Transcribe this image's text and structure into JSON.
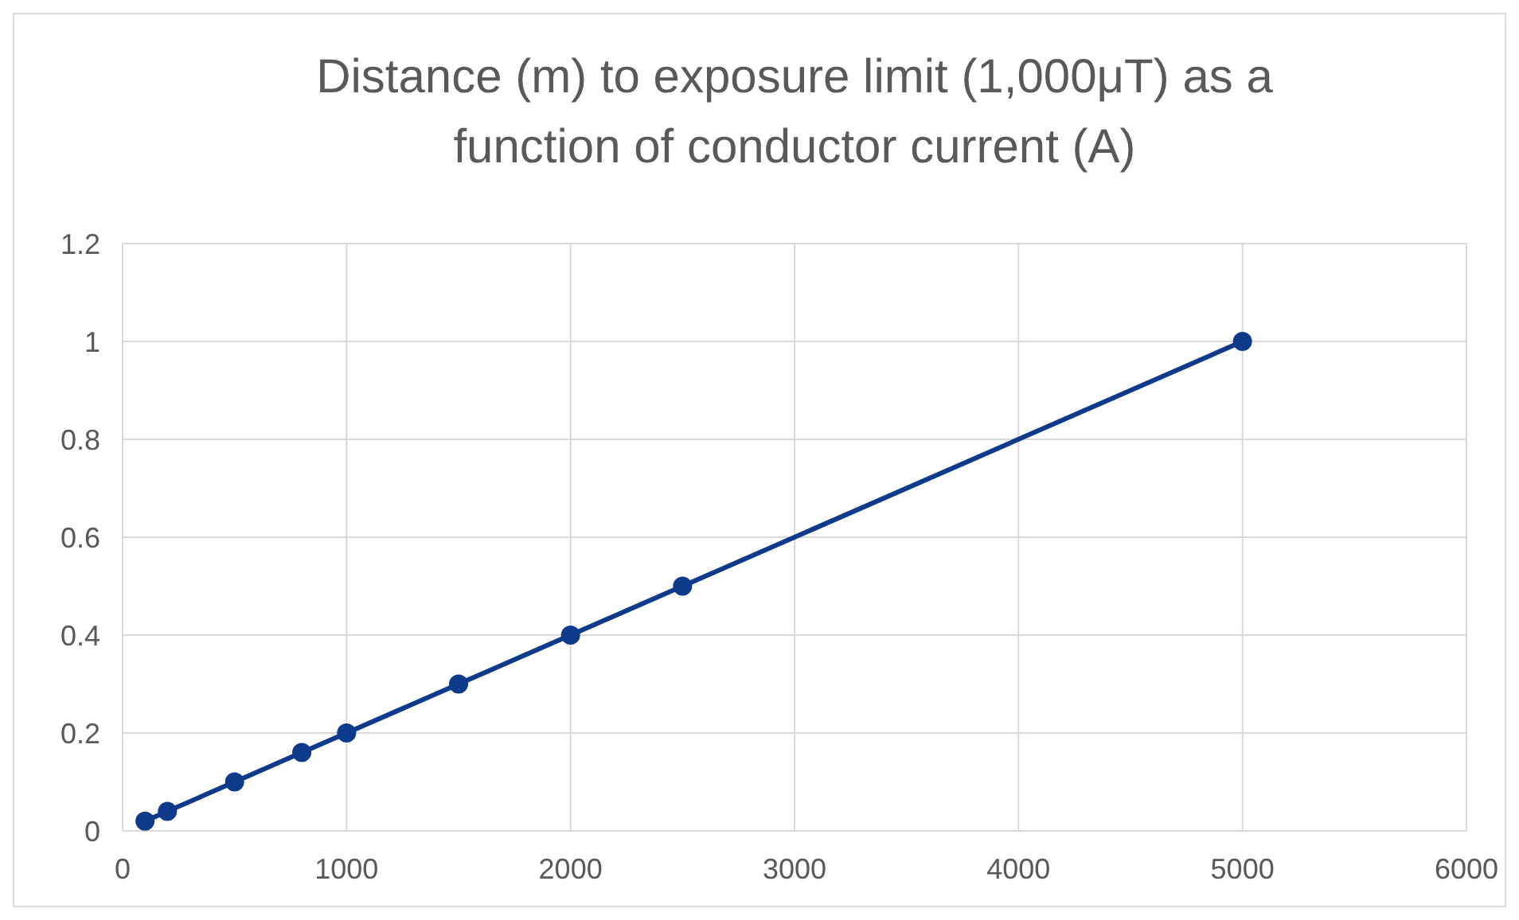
{
  "chart_data": {
    "type": "line",
    "title": "Distance (m) to exposure limit (1,000μT) as a function of conductor current (A)",
    "x": [
      100,
      200,
      500,
      800,
      1000,
      1500,
      2000,
      2500,
      5000
    ],
    "series": [
      {
        "color": "#0e3a8c",
        "values": [
          0.02,
          0.04,
          0.1,
          0.16,
          0.2,
          0.3,
          0.4,
          0.5,
          1
        ]
      }
    ],
    "xlim": [
      0,
      6000
    ],
    "xticks": [
      0,
      1000,
      2000,
      3000,
      4000,
      5000,
      6000
    ],
    "ylim": [
      0,
      1.2
    ],
    "yticks": [
      0,
      0.2,
      0.4,
      0.6,
      0.8,
      1,
      1.2
    ],
    "grid": true,
    "marker": "circle",
    "line_style": "solid"
  }
}
